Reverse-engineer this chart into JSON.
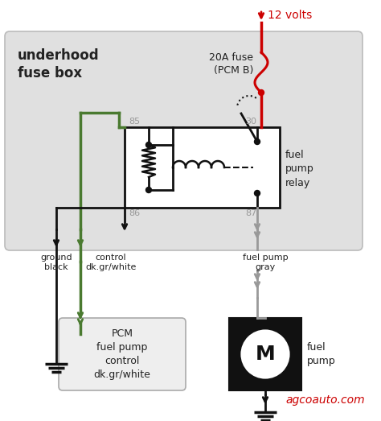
{
  "bg_color": "#ffffff",
  "fuse_box_bg": "#e0e0e0",
  "relay_box_bg": "#ffffff",
  "wire_black": "#111111",
  "wire_green": "#4a7a30",
  "wire_red": "#cc0000",
  "wire_gray": "#999999",
  "text_dark": "#222222",
  "text_gray": "#999999",
  "text_red": "#cc0000",
  "label_underhood": "underhood\nfuse box",
  "label_12v": "12 volts",
  "label_fuse": "20A fuse\n(PCM B)",
  "label_relay": "fuel\npump\nrelay",
  "label_ground": "ground\nblack",
  "label_control": "control\ndk.gr/white",
  "label_fuelpump_wire": "fuel pump\ngray",
  "label_pcm": "PCM\nfuel pump\ncontrol\ndk.gr/white",
  "label_fuelpump": "fuel\npump",
  "label_agco": "agcoauto.com",
  "pin85": "85",
  "pin86": "86",
  "pin87": "87",
  "pin30": "30"
}
